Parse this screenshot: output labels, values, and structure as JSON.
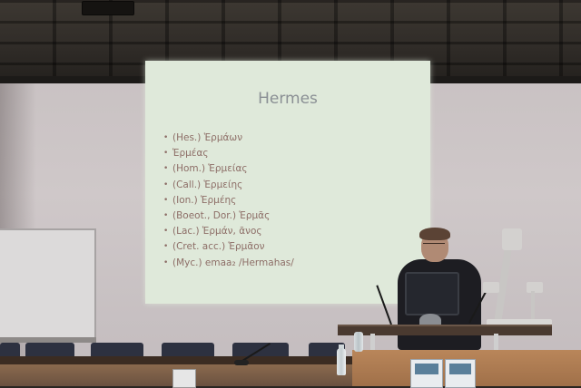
{
  "slide": {
    "title": "Hermes",
    "items": [
      "(Hes.) Ἑρμάων",
      "Ἑρμέας",
      "(Hom.) Ἑρμείας",
      "(Call.) Ἑρμείης",
      "(Ion.) Ἑρμέης",
      "(Boeot., Dor.) Ἑρμᾶς",
      "(Lac.) Ἑρμάν, ᾶνος",
      "(Cret. acc.) Ἑρμᾶον",
      "(Myc.) emaa₂ /Hermahas/"
    ]
  }
}
